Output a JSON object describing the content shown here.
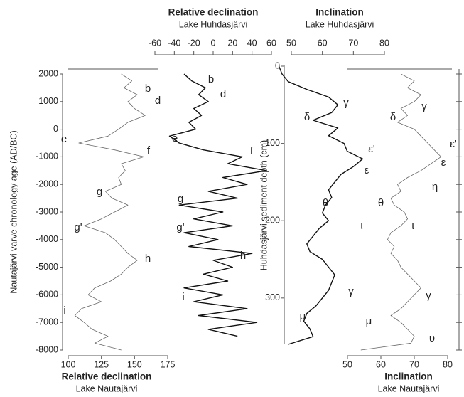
{
  "chart_data": [
    {
      "type": "line",
      "title": "Relative declination",
      "subtitle": "Lake Nautajärvi",
      "y_label": "Nautajärvi varve chronology age (AD/BC)",
      "color": "#666666",
      "ylim": [
        -8000,
        2000
      ],
      "yticks": [
        2000,
        1000,
        0,
        -1000,
        -2000,
        -3000,
        -4000,
        -5000,
        -6000,
        -7000,
        -8000
      ],
      "xlim": [
        100,
        175
      ],
      "xticks": [
        100,
        125,
        150,
        175
      ],
      "y": [
        2000,
        1750,
        1500,
        1250,
        1000,
        750,
        500,
        250,
        0,
        -250,
        -500,
        -750,
        -1000,
        -1250,
        -1500,
        -1750,
        -2000,
        -2250,
        -2500,
        -2750,
        -3000,
        -3250,
        -3500,
        -3750,
        -4000,
        -4250,
        -4500,
        -4750,
        -5000,
        -5250,
        -5500,
        -5750,
        -6000,
        -6250,
        -6500,
        -6750,
        -7000,
        -7250,
        -7500,
        -7750,
        -8000
      ],
      "values": [
        140,
        148,
        142,
        152,
        145,
        150,
        158,
        145,
        138,
        130,
        108,
        135,
        157,
        140,
        143,
        138,
        140,
        128,
        133,
        145,
        135,
        125,
        112,
        128,
        135,
        140,
        145,
        152,
        145,
        140,
        132,
        120,
        115,
        125,
        110,
        105,
        112,
        118,
        130,
        120,
        140
      ],
      "annotations": [
        "b",
        "d",
        "e",
        "f",
        "g",
        "g'",
        "h",
        "i"
      ]
    },
    {
      "type": "line",
      "title": "Relative declination",
      "subtitle": "Lake Huhdasjärvi",
      "color": "#111111",
      "xlim": [
        -60,
        60
      ],
      "xticks": [
        -60,
        -40,
        -20,
        0,
        20,
        40,
        60
      ],
      "y": [
        2000,
        1750,
        1500,
        1250,
        1000,
        750,
        500,
        250,
        0,
        -250,
        -500,
        -750,
        -1000,
        -1250,
        -1500,
        -1750,
        -2000,
        -2250,
        -2500,
        -2750,
        -3000,
        -3250,
        -3500,
        -3750,
        -4000,
        -4250,
        -4500,
        -4750,
        -5000,
        -5250,
        -5500,
        -5750,
        -6000,
        -6250,
        -6500,
        -6750,
        -7000,
        -7250,
        -7500
      ],
      "values": [
        -30,
        -22,
        -8,
        -15,
        -5,
        -20,
        -12,
        -25,
        -18,
        -45,
        -35,
        -10,
        30,
        15,
        55,
        10,
        35,
        -5,
        25,
        -35,
        10,
        -20,
        20,
        -30,
        5,
        -25,
        40,
        0,
        20,
        -10,
        15,
        -30,
        10,
        -20,
        35,
        -15,
        45,
        -5,
        25
      ],
      "annotations": [
        "b",
        "d",
        "e",
        "f",
        "g",
        "g'",
        "h",
        "i"
      ]
    },
    {
      "type": "line",
      "title": "Inclination",
      "subtitle": "Lake Huhdasjärvi",
      "y_label": "Huhdasjärvi sediment depth (cm)",
      "color": "#111111",
      "ylim": [
        360,
        0
      ],
      "yticks": [
        0,
        100,
        200,
        300
      ],
      "xlim": [
        50,
        80
      ],
      "xticks": [
        50,
        60,
        70,
        80
      ],
      "y": [
        0,
        10,
        20,
        30,
        40,
        50,
        60,
        70,
        80,
        90,
        100,
        110,
        120,
        130,
        140,
        150,
        160,
        170,
        180,
        190,
        200,
        210,
        220,
        230,
        240,
        250,
        260,
        270,
        280,
        290,
        300,
        310,
        320,
        330,
        340,
        350,
        360
      ],
      "values": [
        46,
        47,
        49,
        55,
        62,
        65,
        63,
        57,
        65,
        62,
        67,
        68,
        73,
        70,
        66,
        64,
        62,
        63,
        61,
        60,
        62,
        59,
        57,
        55,
        56,
        60,
        62,
        64,
        63,
        62,
        60,
        58,
        55,
        54,
        56,
        57,
        49
      ],
      "annotations": [
        "γ",
        "δ",
        "ε'",
        "ε",
        "θ",
        "ι",
        "γ",
        "μ"
      ]
    },
    {
      "type": "line",
      "title": "Inclination",
      "subtitle": "Lake Nautajärvi",
      "color": "#666666",
      "xlim": [
        50,
        80
      ],
      "xticks": [
        50,
        60,
        70,
        80
      ],
      "y": [
        2000,
        1750,
        1500,
        1250,
        1000,
        750,
        500,
        250,
        0,
        -250,
        -500,
        -750,
        -1000,
        -1250,
        -1500,
        -1750,
        -2000,
        -2250,
        -2500,
        -2750,
        -3000,
        -3250,
        -3500,
        -3750,
        -4000,
        -4250,
        -4500,
        -4750,
        -5000,
        -5250,
        -5500,
        -5750,
        -6000,
        -6250,
        -6500,
        -6750,
        -7000,
        -7250,
        -7500,
        -7750,
        -8000
      ],
      "values": [
        66,
        70,
        68,
        72,
        70,
        66,
        68,
        65,
        70,
        72,
        74,
        76,
        78,
        75,
        72,
        68,
        65,
        66,
        63,
        64,
        67,
        68,
        66,
        63,
        62,
        64,
        63,
        65,
        66,
        68,
        70,
        72,
        70,
        68,
        66,
        63,
        66,
        68,
        70,
        69,
        54
      ],
      "annotations": [
        "γ",
        "δ",
        "ε'",
        "ε",
        "η",
        "θ",
        "ι",
        "γ",
        "μ",
        "υ"
      ]
    }
  ]
}
